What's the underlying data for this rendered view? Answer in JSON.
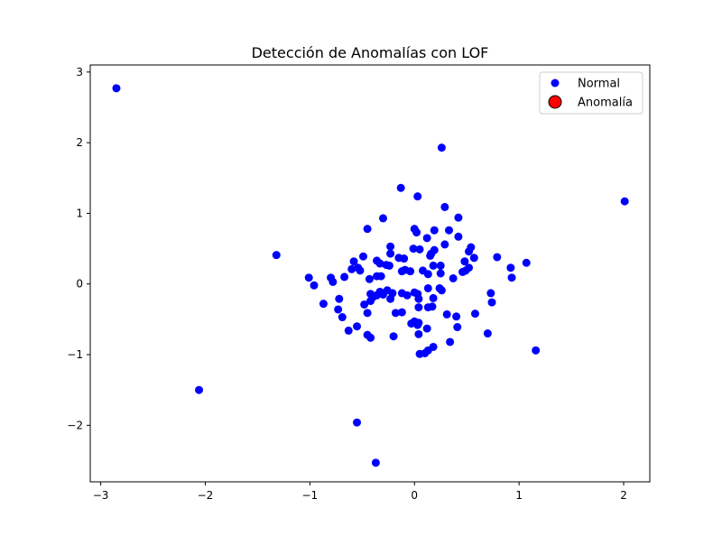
{
  "chart_data": {
    "type": "scatter",
    "title": "Detección de Anomalías con LOF",
    "xlabel": "",
    "ylabel": "",
    "xlim": [
      -3.1,
      2.25
    ],
    "ylim": [
      -2.8,
      3.1
    ],
    "xticks": [
      -3,
      -2,
      -1,
      0,
      1,
      2
    ],
    "yticks": [
      -2,
      -1,
      0,
      1,
      2,
      3
    ],
    "xtick_labels": [
      "−3",
      "−2",
      "−1",
      "0",
      "1",
      "2"
    ],
    "ytick_labels": [
      "−2",
      "−1",
      "0",
      "1",
      "2",
      "3"
    ],
    "grid": false,
    "legend_position": "top-right",
    "series": [
      {
        "name": "Normal",
        "color": "#0000ff",
        "marker": "circle",
        "points": [
          [
            -2.85,
            2.77
          ],
          [
            -2.06,
            -1.5
          ],
          [
            -1.32,
            0.41
          ],
          [
            2.01,
            1.17
          ],
          [
            0.26,
            1.93
          ],
          [
            -0.55,
            -1.96
          ],
          [
            -0.37,
            -2.53
          ],
          [
            1.16,
            -0.94
          ],
          [
            -0.13,
            1.36
          ],
          [
            0.03,
            1.24
          ],
          [
            0.29,
            1.09
          ],
          [
            0.42,
            0.94
          ],
          [
            -0.3,
            0.93
          ],
          [
            0.0,
            0.78
          ],
          [
            0.02,
            0.73
          ],
          [
            0.19,
            0.76
          ],
          [
            0.33,
            0.76
          ],
          [
            -0.45,
            0.78
          ],
          [
            0.12,
            0.65
          ],
          [
            0.42,
            0.67
          ],
          [
            -0.23,
            0.53
          ],
          [
            0.05,
            0.49
          ],
          [
            0.19,
            0.48
          ],
          [
            0.29,
            0.56
          ],
          [
            0.54,
            0.52
          ],
          [
            0.52,
            0.46
          ],
          [
            -0.01,
            0.5
          ],
          [
            -0.23,
            0.43
          ],
          [
            -0.15,
            0.37
          ],
          [
            -0.1,
            0.36
          ],
          [
            0.15,
            0.4
          ],
          [
            0.16,
            0.43
          ],
          [
            0.57,
            0.37
          ],
          [
            0.79,
            0.38
          ],
          [
            -0.49,
            0.39
          ],
          [
            -0.58,
            0.32
          ],
          [
            -0.36,
            0.33
          ],
          [
            -0.33,
            0.29
          ],
          [
            -0.27,
            0.27
          ],
          [
            -0.24,
            0.26
          ],
          [
            0.18,
            0.26
          ],
          [
            0.25,
            0.26
          ],
          [
            0.48,
            0.32
          ],
          [
            0.52,
            0.23
          ],
          [
            0.92,
            0.23
          ],
          [
            1.07,
            0.3
          ],
          [
            -0.6,
            0.21
          ],
          [
            -0.54,
            0.23
          ],
          [
            -0.52,
            0.19
          ],
          [
            -0.12,
            0.18
          ],
          [
            -0.09,
            0.2
          ],
          [
            -0.04,
            0.18
          ],
          [
            0.08,
            0.19
          ],
          [
            0.13,
            0.14
          ],
          [
            0.25,
            0.15
          ],
          [
            0.46,
            0.17
          ],
          [
            0.49,
            0.19
          ],
          [
            0.93,
            0.09
          ],
          [
            -1.01,
            0.09
          ],
          [
            -0.96,
            -0.02
          ],
          [
            -0.8,
            0.09
          ],
          [
            -0.78,
            0.03
          ],
          [
            -0.67,
            0.1
          ],
          [
            -0.43,
            0.07
          ],
          [
            -0.36,
            0.11
          ],
          [
            -0.32,
            0.11
          ],
          [
            0.37,
            0.08
          ],
          [
            -0.42,
            -0.14
          ],
          [
            -0.4,
            -0.19
          ],
          [
            -0.36,
            -0.16
          ],
          [
            -0.33,
            -0.11
          ],
          [
            -0.3,
            -0.15
          ],
          [
            -0.26,
            -0.09
          ],
          [
            -0.21,
            -0.13
          ],
          [
            -0.12,
            -0.13
          ],
          [
            -0.07,
            -0.16
          ],
          [
            0.0,
            -0.12
          ],
          [
            0.03,
            -0.14
          ],
          [
            0.13,
            -0.06
          ],
          [
            0.24,
            -0.06
          ],
          [
            0.26,
            -0.09
          ],
          [
            -0.72,
            -0.21
          ],
          [
            -0.87,
            -0.28
          ],
          [
            -0.73,
            -0.36
          ],
          [
            -0.69,
            -0.47
          ],
          [
            -0.48,
            -0.29
          ],
          [
            -0.42,
            -0.24
          ],
          [
            -0.23,
            -0.21
          ],
          [
            0.04,
            -0.21
          ],
          [
            0.18,
            -0.2
          ],
          [
            -0.45,
            -0.41
          ],
          [
            -0.18,
            -0.41
          ],
          [
            -0.12,
            -0.4
          ],
          [
            0.04,
            -0.33
          ],
          [
            0.13,
            -0.33
          ],
          [
            0.17,
            -0.32
          ],
          [
            0.31,
            -0.43
          ],
          [
            0.4,
            -0.46
          ],
          [
            0.58,
            -0.42
          ],
          [
            0.73,
            -0.13
          ],
          [
            0.74,
            -0.26
          ],
          [
            -0.55,
            -0.6
          ],
          [
            -0.63,
            -0.66
          ],
          [
            -0.45,
            -0.72
          ],
          [
            -0.42,
            -0.76
          ],
          [
            -0.2,
            -0.74
          ],
          [
            -0.03,
            -0.56
          ],
          [
            0.0,
            -0.53
          ],
          [
            0.03,
            -0.58
          ],
          [
            0.04,
            -0.55
          ],
          [
            0.04,
            -0.71
          ],
          [
            0.12,
            -0.63
          ],
          [
            0.41,
            -0.61
          ],
          [
            0.7,
            -0.7
          ],
          [
            0.34,
            -0.82
          ],
          [
            0.18,
            -0.89
          ],
          [
            0.05,
            -0.99
          ],
          [
            0.1,
            -0.98
          ],
          [
            0.13,
            -0.94
          ]
        ]
      },
      {
        "name": "Anomalía",
        "color": "#ff0000",
        "edgecolor": "#000000",
        "marker": "circle",
        "points": []
      }
    ]
  }
}
